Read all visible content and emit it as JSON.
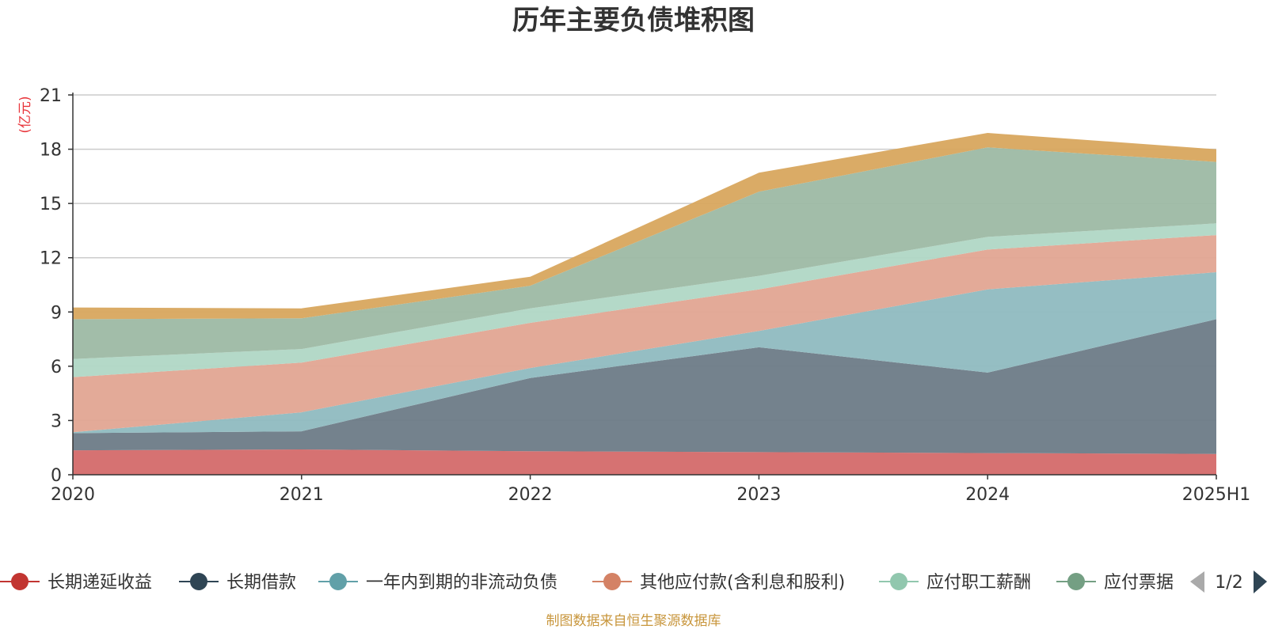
{
  "chart_data": {
    "type": "area",
    "stacked": true,
    "title": "历年主要负债堆积图",
    "y_unit": "(亿元)",
    "ylim": [
      0,
      21
    ],
    "y_ticks": [
      "0",
      "3",
      "6",
      "9",
      "12",
      "15",
      "18",
      "21"
    ],
    "categories": [
      "2020",
      "2021",
      "2022",
      "2023",
      "2024",
      "2025H1"
    ],
    "grid": true,
    "legend_position": "bottom",
    "series": [
      {
        "name": "长期递延收益",
        "color": "#d46a6a",
        "marker_color": "#c23531",
        "values": [
          1.35,
          1.4,
          1.3,
          1.25,
          1.2,
          1.15
        ]
      },
      {
        "name": "长期借款",
        "color": "#6d7b87",
        "marker_color": "#2f4554",
        "values": [
          0.95,
          1.0,
          4.05,
          5.8,
          4.45,
          7.45
        ]
      },
      {
        "name": "一年内到期的非流动负债",
        "color": "#8fbbc0",
        "marker_color": "#61a0a8",
        "values": [
          0.05,
          1.05,
          0.55,
          0.9,
          4.6,
          2.6
        ]
      },
      {
        "name": "其他应付款(含利息和股利)",
        "color": "#e2a592",
        "marker_color": "#d48265",
        "values": [
          3.05,
          2.75,
          2.5,
          2.3,
          2.2,
          2.05
        ]
      },
      {
        "name": "应付职工薪酬",
        "color": "#b0d7c5",
        "marker_color": "#91c7ae",
        "values": [
          1.0,
          0.75,
          0.8,
          0.75,
          0.7,
          0.65
        ]
      },
      {
        "name": "应付票据",
        "color": "#9db9a4",
        "marker_color": "#749f83",
        "values": [
          2.2,
          1.7,
          1.25,
          4.65,
          4.95,
          3.4
        ]
      },
      {
        "values": [
          0.65,
          0.55,
          0.5,
          1.05,
          0.8,
          0.7
        ],
        "color": "#d8a75e"
      }
    ],
    "legend_page": "1/2"
  },
  "source_note": "制图数据来自恒生聚源数据库"
}
